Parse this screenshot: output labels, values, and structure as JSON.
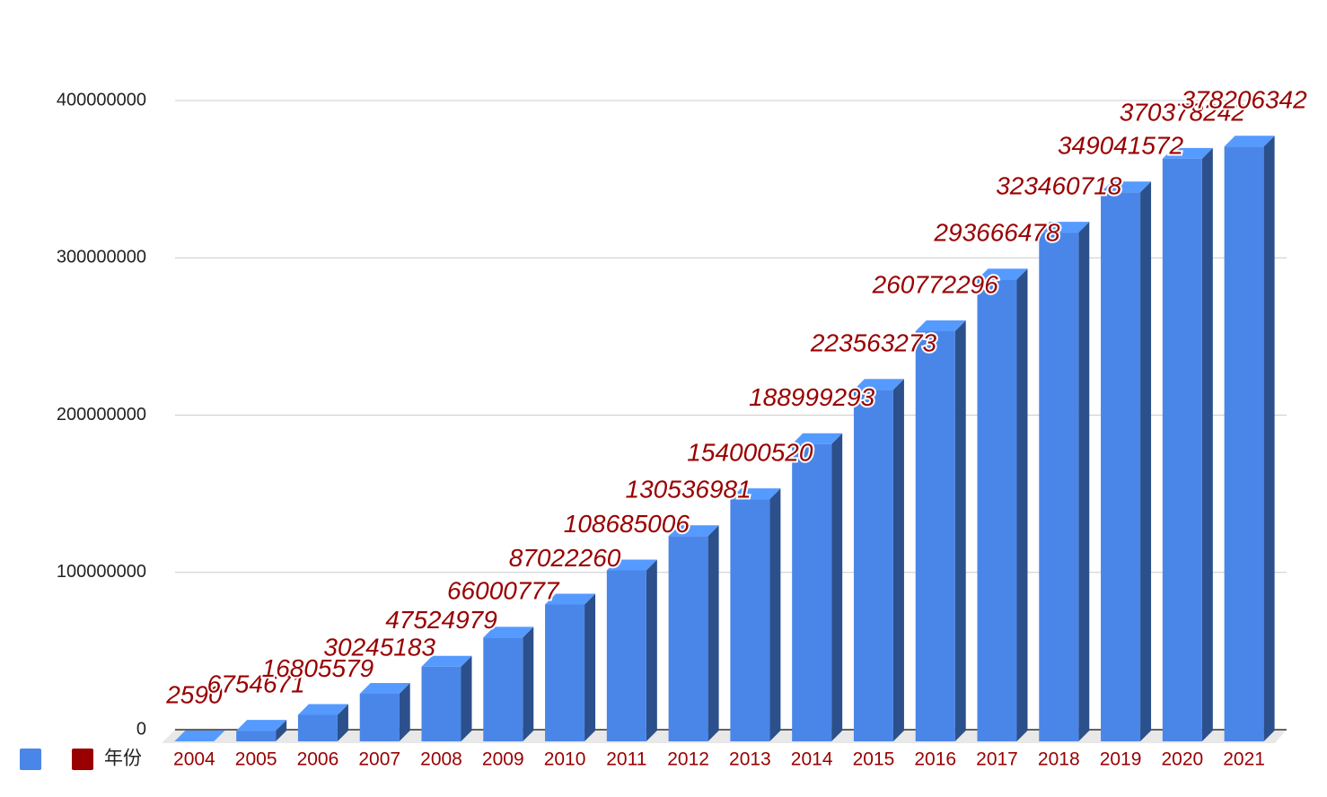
{
  "chart_data": {
    "type": "bar3d",
    "categories": [
      "2004",
      "2005",
      "2006",
      "2007",
      "2008",
      "2009",
      "2010",
      "2011",
      "2012",
      "2013",
      "2014",
      "2015",
      "2016",
      "2017",
      "2018",
      "2019",
      "2020",
      "2021"
    ],
    "series": [
      {
        "color": "#4a86e8",
        "values": [
          2590,
          6754671,
          16805579,
          30245183,
          47524979,
          66000777,
          87022260,
          108685006,
          130536981,
          154000520,
          188999293,
          223563273,
          260772296,
          293666478,
          323460718,
          349041572,
          370378242,
          378206342
        ]
      }
    ],
    "legend": [
      {
        "color": "#4a86e8"
      },
      {
        "label": "年份",
        "color": "#990000"
      }
    ],
    "ylim": [
      0,
      400000000
    ],
    "yticks": [
      0,
      100000000,
      200000000,
      300000000,
      400000000
    ],
    "grid": true
  }
}
